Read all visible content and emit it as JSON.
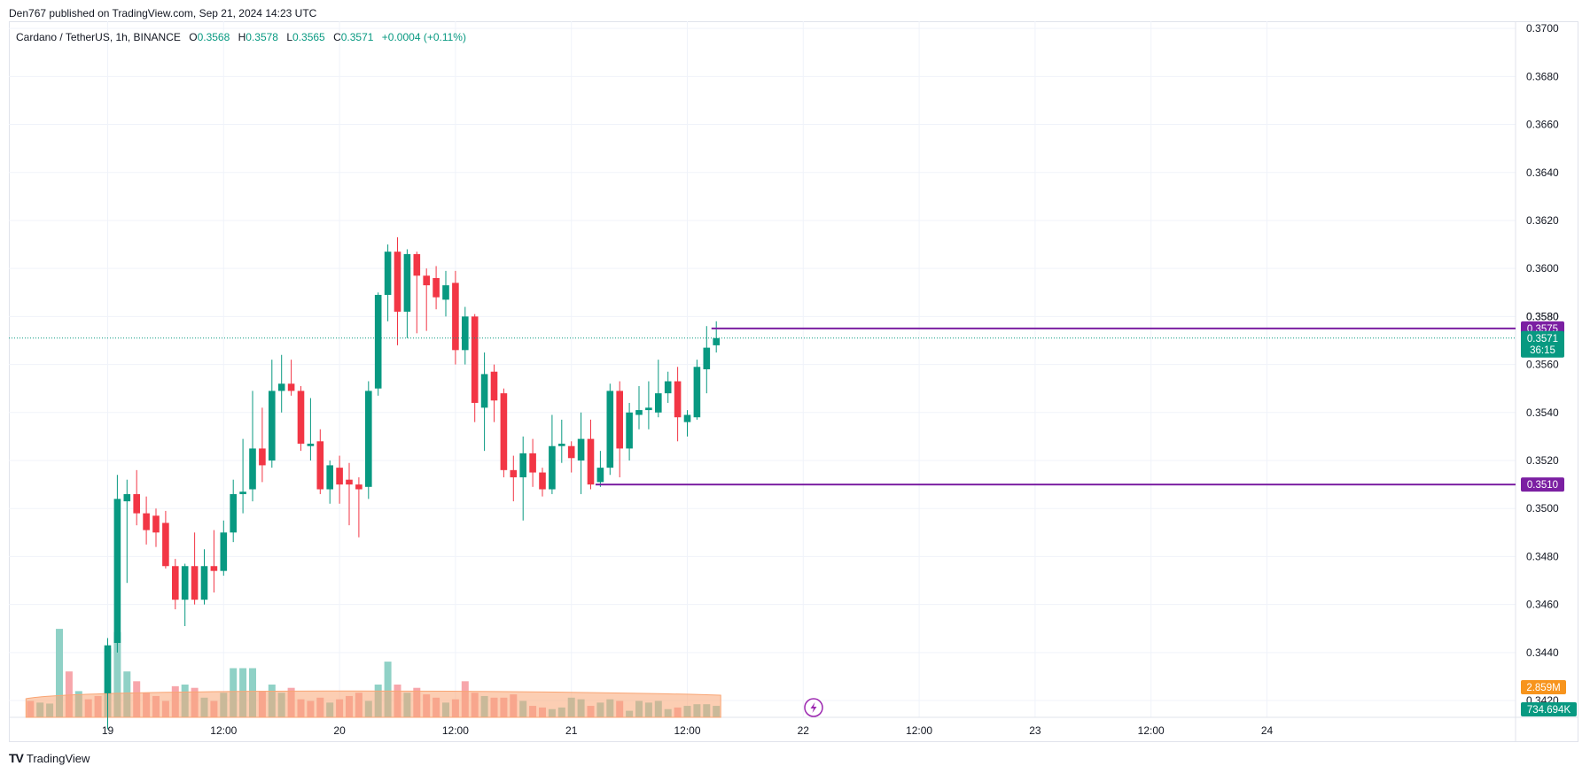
{
  "header": {
    "published": "Den767 published on TradingView.com, Sep 21, 2024 14:23 UTC"
  },
  "legend": {
    "symbol": "Cardano / TetherUS, 1h, BINANCE",
    "o_label": "O",
    "o_value": "0.3568",
    "h_label": "H",
    "h_value": "0.3578",
    "l_label": "L",
    "l_value": "0.3565",
    "c_label": "C",
    "c_value": "0.3571",
    "change": "+0.0004 (+0.11%)"
  },
  "footer": {
    "brand": "TradingView",
    "logo": "TV"
  },
  "colors": {
    "up": "#089981",
    "down": "#f23645",
    "up_volume": "#8fd1c6",
    "down_volume": "#f7a6ab",
    "level": "#7b1fa2",
    "grid": "#f0f3fa",
    "volume_ma": "#f9a574",
    "volume_ma_badge": "#f7941d"
  },
  "chart_data": {
    "type": "candlestick",
    "interval": "1h",
    "price_range": [
      0.3413,
      0.3703
    ],
    "y_ticks": [
      "0.3700",
      "0.3680",
      "0.3660",
      "0.3640",
      "0.3620",
      "0.3600",
      "0.3580",
      "0.3560",
      "0.3540",
      "0.3520",
      "0.3500",
      "0.3480",
      "0.3460",
      "0.3440",
      "0.3420"
    ],
    "x_labels": [
      {
        "t": 0,
        "label": "19"
      },
      {
        "t": 12,
        "label": "12:00"
      },
      {
        "t": 24,
        "label": "20"
      },
      {
        "t": 36,
        "label": "12:00"
      },
      {
        "t": 48,
        "label": "21"
      },
      {
        "t": 60,
        "label": "12:00"
      },
      {
        "t": 72,
        "label": "22"
      },
      {
        "t": 84,
        "label": "12:00"
      },
      {
        "t": 96,
        "label": "23"
      },
      {
        "t": 108,
        "label": "12:00"
      },
      {
        "t": 120,
        "label": "24"
      }
    ],
    "candles": [
      {
        "t": 0,
        "o": 0.3423,
        "h": 0.3446,
        "l": 0.3408,
        "c": 0.3443
      },
      {
        "t": 1,
        "o": 0.3444,
        "h": 0.3514,
        "l": 0.344,
        "c": 0.3504
      },
      {
        "t": 2,
        "o": 0.3503,
        "h": 0.3512,
        "l": 0.3469,
        "c": 0.3506
      },
      {
        "t": 3,
        "o": 0.3506,
        "h": 0.3516,
        "l": 0.3493,
        "c": 0.3498
      },
      {
        "t": 4,
        "o": 0.3498,
        "h": 0.3505,
        "l": 0.3485,
        "c": 0.3491
      },
      {
        "t": 5,
        "o": 0.3497,
        "h": 0.35,
        "l": 0.3484,
        "c": 0.349
      },
      {
        "t": 6,
        "o": 0.3494,
        "h": 0.3499,
        "l": 0.3475,
        "c": 0.3476
      },
      {
        "t": 7,
        "o": 0.3476,
        "h": 0.3479,
        "l": 0.3458,
        "c": 0.3462
      },
      {
        "t": 8,
        "o": 0.3462,
        "h": 0.3477,
        "l": 0.3451,
        "c": 0.3476
      },
      {
        "t": 9,
        "o": 0.3476,
        "h": 0.349,
        "l": 0.346,
        "c": 0.3462
      },
      {
        "t": 10,
        "o": 0.3462,
        "h": 0.3483,
        "l": 0.346,
        "c": 0.3476
      },
      {
        "t": 11,
        "o": 0.3476,
        "h": 0.3491,
        "l": 0.3465,
        "c": 0.3474
      },
      {
        "t": 12,
        "o": 0.3474,
        "h": 0.3495,
        "l": 0.3472,
        "c": 0.349
      },
      {
        "t": 13,
        "o": 0.349,
        "h": 0.3512,
        "l": 0.3486,
        "c": 0.3506
      },
      {
        "t": 14,
        "o": 0.3506,
        "h": 0.3529,
        "l": 0.3498,
        "c": 0.3507
      },
      {
        "t": 15,
        "o": 0.3508,
        "h": 0.3549,
        "l": 0.3503,
        "c": 0.3525
      },
      {
        "t": 16,
        "o": 0.3525,
        "h": 0.3542,
        "l": 0.3511,
        "c": 0.3518
      },
      {
        "t": 17,
        "o": 0.352,
        "h": 0.3562,
        "l": 0.3517,
        "c": 0.3549
      },
      {
        "t": 18,
        "o": 0.3549,
        "h": 0.3564,
        "l": 0.354,
        "c": 0.3552
      },
      {
        "t": 19,
        "o": 0.3552,
        "h": 0.3562,
        "l": 0.3547,
        "c": 0.3549
      },
      {
        "t": 20,
        "o": 0.3549,
        "h": 0.3551,
        "l": 0.3524,
        "c": 0.3527
      },
      {
        "t": 21,
        "o": 0.3526,
        "h": 0.3546,
        "l": 0.352,
        "c": 0.3527
      },
      {
        "t": 22,
        "o": 0.3528,
        "h": 0.3533,
        "l": 0.3506,
        "c": 0.3508
      },
      {
        "t": 23,
        "o": 0.3508,
        "h": 0.352,
        "l": 0.3502,
        "c": 0.3518
      },
      {
        "t": 24,
        "o": 0.3517,
        "h": 0.3522,
        "l": 0.3502,
        "c": 0.351
      },
      {
        "t": 25,
        "o": 0.3512,
        "h": 0.3519,
        "l": 0.3493,
        "c": 0.351
      },
      {
        "t": 26,
        "o": 0.351,
        "h": 0.3513,
        "l": 0.3488,
        "c": 0.3508
      },
      {
        "t": 27,
        "o": 0.3509,
        "h": 0.3553,
        "l": 0.3504,
        "c": 0.3549
      },
      {
        "t": 28,
        "o": 0.355,
        "h": 0.359,
        "l": 0.3547,
        "c": 0.3589
      },
      {
        "t": 29,
        "o": 0.3589,
        "h": 0.361,
        "l": 0.3578,
        "c": 0.3607
      },
      {
        "t": 30,
        "o": 0.3607,
        "h": 0.3613,
        "l": 0.3568,
        "c": 0.3582
      },
      {
        "t": 31,
        "o": 0.3582,
        "h": 0.3608,
        "l": 0.3571,
        "c": 0.3606
      },
      {
        "t": 32,
        "o": 0.3606,
        "h": 0.3607,
        "l": 0.3573,
        "c": 0.3597
      },
      {
        "t": 33,
        "o": 0.3597,
        "h": 0.36,
        "l": 0.3574,
        "c": 0.3593
      },
      {
        "t": 34,
        "o": 0.3596,
        "h": 0.3601,
        "l": 0.3583,
        "c": 0.3588
      },
      {
        "t": 35,
        "o": 0.3587,
        "h": 0.3599,
        "l": 0.358,
        "c": 0.3593
      },
      {
        "t": 36,
        "o": 0.3594,
        "h": 0.3599,
        "l": 0.356,
        "c": 0.3566
      },
      {
        "t": 37,
        "o": 0.3566,
        "h": 0.3584,
        "l": 0.356,
        "c": 0.358
      },
      {
        "t": 38,
        "o": 0.358,
        "h": 0.3581,
        "l": 0.3536,
        "c": 0.3544
      },
      {
        "t": 39,
        "o": 0.3542,
        "h": 0.3565,
        "l": 0.3524,
        "c": 0.3556
      },
      {
        "t": 40,
        "o": 0.3557,
        "h": 0.356,
        "l": 0.3536,
        "c": 0.3545
      },
      {
        "t": 41,
        "o": 0.3548,
        "h": 0.355,
        "l": 0.3513,
        "c": 0.3516
      },
      {
        "t": 42,
        "o": 0.3516,
        "h": 0.3522,
        "l": 0.3503,
        "c": 0.3513
      },
      {
        "t": 43,
        "o": 0.3513,
        "h": 0.353,
        "l": 0.3495,
        "c": 0.3523
      },
      {
        "t": 44,
        "o": 0.3523,
        "h": 0.3529,
        "l": 0.3509,
        "c": 0.3515
      },
      {
        "t": 45,
        "o": 0.3515,
        "h": 0.3517,
        "l": 0.3505,
        "c": 0.3508
      },
      {
        "t": 46,
        "o": 0.3508,
        "h": 0.3539,
        "l": 0.3506,
        "c": 0.3526
      },
      {
        "t": 47,
        "o": 0.3526,
        "h": 0.3537,
        "l": 0.3519,
        "c": 0.3527
      },
      {
        "t": 48,
        "o": 0.3526,
        "h": 0.3528,
        "l": 0.3515,
        "c": 0.3521
      },
      {
        "t": 49,
        "o": 0.352,
        "h": 0.354,
        "l": 0.3506,
        "c": 0.3529
      },
      {
        "t": 50,
        "o": 0.3529,
        "h": 0.3537,
        "l": 0.3508,
        "c": 0.351
      },
      {
        "t": 51,
        "o": 0.3511,
        "h": 0.3524,
        "l": 0.3509,
        "c": 0.3517
      },
      {
        "t": 52,
        "o": 0.3517,
        "h": 0.3552,
        "l": 0.3514,
        "c": 0.3549
      },
      {
        "t": 53,
        "o": 0.3549,
        "h": 0.3553,
        "l": 0.3513,
        "c": 0.3525
      },
      {
        "t": 54,
        "o": 0.3525,
        "h": 0.3544,
        "l": 0.352,
        "c": 0.354
      },
      {
        "t": 55,
        "o": 0.3539,
        "h": 0.3551,
        "l": 0.3533,
        "c": 0.3541
      },
      {
        "t": 56,
        "o": 0.3541,
        "h": 0.3553,
        "l": 0.3533,
        "c": 0.3542
      },
      {
        "t": 57,
        "o": 0.354,
        "h": 0.3562,
        "l": 0.3538,
        "c": 0.3548
      },
      {
        "t": 58,
        "o": 0.3548,
        "h": 0.3557,
        "l": 0.3544,
        "c": 0.3553
      },
      {
        "t": 59,
        "o": 0.3553,
        "h": 0.3559,
        "l": 0.3528,
        "c": 0.3538
      },
      {
        "t": 60,
        "o": 0.3536,
        "h": 0.3541,
        "l": 0.353,
        "c": 0.3539
      },
      {
        "t": 61,
        "o": 0.3538,
        "h": 0.3562,
        "l": 0.3537,
        "c": 0.3559
      },
      {
        "t": 62,
        "o": 0.3558,
        "h": 0.3576,
        "l": 0.3548,
        "c": 0.3567
      },
      {
        "t": 63,
        "o": 0.3568,
        "h": 0.3578,
        "l": 0.3565,
        "c": 0.3571
      }
    ],
    "volume": [
      {
        "t": -8,
        "v": 0.5,
        "up": false
      },
      {
        "t": -7,
        "v": 0.45,
        "up": true
      },
      {
        "t": -6,
        "v": 0.42,
        "up": true
      },
      {
        "t": -5,
        "v": 2.7,
        "up": true
      },
      {
        "t": -4,
        "v": 1.4,
        "up": false
      },
      {
        "t": -3,
        "v": 0.8,
        "up": true
      },
      {
        "t": -2,
        "v": 0.55,
        "up": false
      },
      {
        "t": -1,
        "v": 0.65,
        "up": false
      },
      {
        "t": 0,
        "v": 2.1,
        "up": true
      },
      {
        "t": 1,
        "v": 2.6,
        "up": true
      },
      {
        "t": 2,
        "v": 1.4,
        "up": true
      },
      {
        "t": 3,
        "v": 1.1,
        "up": false
      },
      {
        "t": 4,
        "v": 0.75,
        "up": false
      },
      {
        "t": 5,
        "v": 0.65,
        "up": false
      },
      {
        "t": 6,
        "v": 0.5,
        "up": false
      },
      {
        "t": 7,
        "v": 0.95,
        "up": false
      },
      {
        "t": 8,
        "v": 1.0,
        "up": true
      },
      {
        "t": 9,
        "v": 0.9,
        "up": false
      },
      {
        "t": 10,
        "v": 0.6,
        "up": true
      },
      {
        "t": 11,
        "v": 0.5,
        "up": false
      },
      {
        "t": 12,
        "v": 0.75,
        "up": true
      },
      {
        "t": 13,
        "v": 1.5,
        "up": true
      },
      {
        "t": 14,
        "v": 1.5,
        "up": true
      },
      {
        "t": 15,
        "v": 1.5,
        "up": true
      },
      {
        "t": 16,
        "v": 0.8,
        "up": false
      },
      {
        "t": 17,
        "v": 1.0,
        "up": true
      },
      {
        "t": 18,
        "v": 0.75,
        "up": true
      },
      {
        "t": 19,
        "v": 0.9,
        "up": false
      },
      {
        "t": 20,
        "v": 0.55,
        "up": false
      },
      {
        "t": 21,
        "v": 0.5,
        "up": false
      },
      {
        "t": 22,
        "v": 0.6,
        "up": false
      },
      {
        "t": 23,
        "v": 0.45,
        "up": true
      },
      {
        "t": 24,
        "v": 0.55,
        "up": false
      },
      {
        "t": 25,
        "v": 0.65,
        "up": false
      },
      {
        "t": 26,
        "v": 0.75,
        "up": false
      },
      {
        "t": 27,
        "v": 0.5,
        "up": true
      },
      {
        "t": 28,
        "v": 1.0,
        "up": true
      },
      {
        "t": 29,
        "v": 1.7,
        "up": true
      },
      {
        "t": 30,
        "v": 1.0,
        "up": false
      },
      {
        "t": 31,
        "v": 0.75,
        "up": true
      },
      {
        "t": 32,
        "v": 0.9,
        "up": false
      },
      {
        "t": 33,
        "v": 0.7,
        "up": false
      },
      {
        "t": 34,
        "v": 0.6,
        "up": false
      },
      {
        "t": 35,
        "v": 0.45,
        "up": true
      },
      {
        "t": 36,
        "v": 0.55,
        "up": false
      },
      {
        "t": 37,
        "v": 1.1,
        "up": false
      },
      {
        "t": 38,
        "v": 0.75,
        "up": false
      },
      {
        "t": 39,
        "v": 0.65,
        "up": true
      },
      {
        "t": 40,
        "v": 0.6,
        "up": false
      },
      {
        "t": 41,
        "v": 0.6,
        "up": false
      },
      {
        "t": 42,
        "v": 0.7,
        "up": false
      },
      {
        "t": 43,
        "v": 0.5,
        "up": true
      },
      {
        "t": 44,
        "v": 0.35,
        "up": false
      },
      {
        "t": 45,
        "v": 0.3,
        "up": false
      },
      {
        "t": 46,
        "v": 0.25,
        "up": true
      },
      {
        "t": 47,
        "v": 0.3,
        "up": true
      },
      {
        "t": 48,
        "v": 0.6,
        "up": true
      },
      {
        "t": 49,
        "v": 0.55,
        "up": true
      },
      {
        "t": 50,
        "v": 0.35,
        "up": false
      },
      {
        "t": 51,
        "v": 0.45,
        "up": true
      },
      {
        "t": 52,
        "v": 0.55,
        "up": true
      },
      {
        "t": 53,
        "v": 0.5,
        "up": false
      },
      {
        "t": 54,
        "v": 0.2,
        "up": true
      },
      {
        "t": 55,
        "v": 0.5,
        "up": true
      },
      {
        "t": 56,
        "v": 0.45,
        "up": true
      },
      {
        "t": 57,
        "v": 0.5,
        "up": true
      },
      {
        "t": 58,
        "v": 0.25,
        "up": true
      },
      {
        "t": 59,
        "v": 0.3,
        "up": false
      },
      {
        "t": 60,
        "v": 0.35,
        "up": true
      },
      {
        "t": 61,
        "v": 0.4,
        "up": true
      },
      {
        "t": 62,
        "v": 0.4,
        "up": true
      },
      {
        "t": 63,
        "v": 0.35,
        "up": true
      }
    ],
    "volume_ma_level": 0.73,
    "levels": [
      {
        "price": 0.3575,
        "label": "0.3575",
        "from_t": 62.5
      },
      {
        "price": 0.351,
        "label": "0.3510",
        "from_t": 50.5
      }
    ],
    "last_price": {
      "price": 0.3571,
      "label": "0.3571",
      "countdown": "36:15"
    },
    "volume_badges": {
      "ma_label": "2.859M",
      "last_label": "734.694K"
    },
    "partially_hidden_tick": "0.3580"
  }
}
